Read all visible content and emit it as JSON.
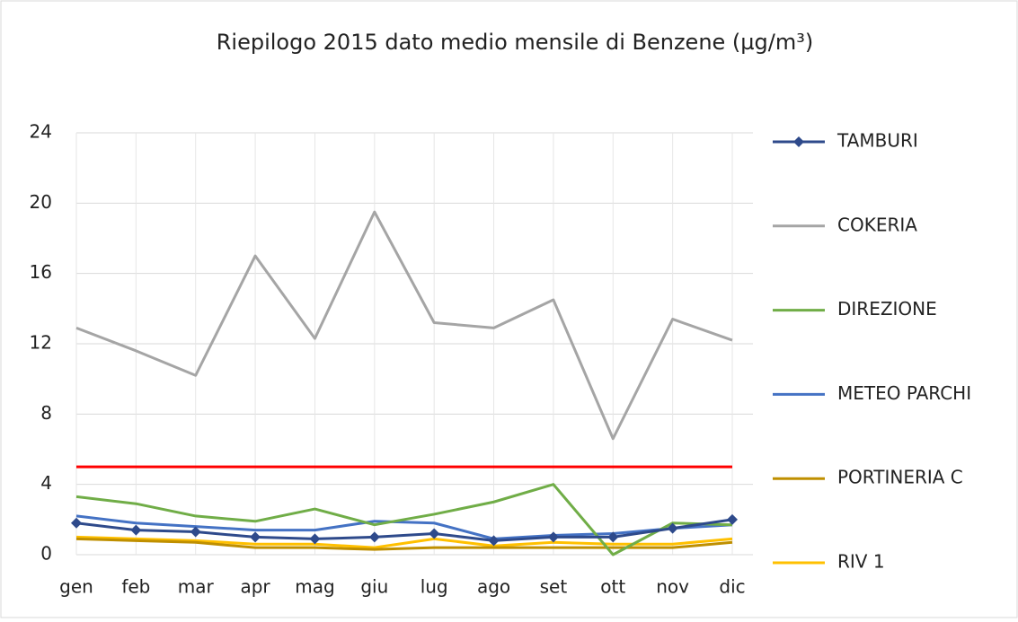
{
  "chart_data": {
    "type": "line",
    "title": "Riepilogo 2015 dato medio mensile di Benzene (µg/m³)",
    "categories": [
      "gen",
      "feb",
      "mar",
      "apr",
      "mag",
      "giu",
      "lug",
      "ago",
      "set",
      "ott",
      "nov",
      "dic"
    ],
    "series": [
      {
        "name": "TAMBURI",
        "color": "#2e4a8b",
        "marker": "diamond",
        "values": [
          1.8,
          1.4,
          1.3,
          1.0,
          0.9,
          1.0,
          1.2,
          0.8,
          1.0,
          1.0,
          1.5,
          2.0
        ]
      },
      {
        "name": "COKERIA",
        "color": "#a5a5a5",
        "values": [
          12.9,
          11.6,
          10.2,
          17.0,
          12.3,
          19.5,
          13.2,
          12.9,
          14.5,
          6.6,
          13.4,
          12.2
        ]
      },
      {
        "name": "DIREZIONE",
        "color": "#70ad47",
        "values": [
          3.3,
          2.9,
          2.2,
          1.9,
          2.6,
          1.7,
          2.3,
          3.0,
          4.0,
          0.0,
          1.8,
          1.7
        ]
      },
      {
        "name": "METEO PARCHI",
        "color": "#4472c4",
        "values": [
          2.2,
          1.8,
          1.6,
          1.4,
          1.4,
          1.9,
          1.8,
          0.9,
          1.1,
          1.2,
          1.5,
          1.7
        ]
      },
      {
        "name": "PORTINERIA C",
        "color": "#bf8f00",
        "values": [
          0.9,
          0.8,
          0.7,
          0.4,
          0.4,
          0.3,
          0.4,
          0.4,
          0.4,
          0.4,
          0.4,
          0.7
        ]
      },
      {
        "name": "RIV 1",
        "color": "#ffc000",
        "values": [
          1.0,
          0.9,
          0.8,
          0.6,
          0.6,
          0.4,
          0.9,
          0.5,
          0.7,
          0.6,
          0.6,
          0.9
        ]
      }
    ],
    "reference_line": {
      "value": 5,
      "color": "#ff0000"
    },
    "ylim": [
      0,
      24
    ],
    "yticks": [
      0,
      4,
      8,
      12,
      16,
      20,
      24
    ],
    "grid": true,
    "legend": "right"
  }
}
